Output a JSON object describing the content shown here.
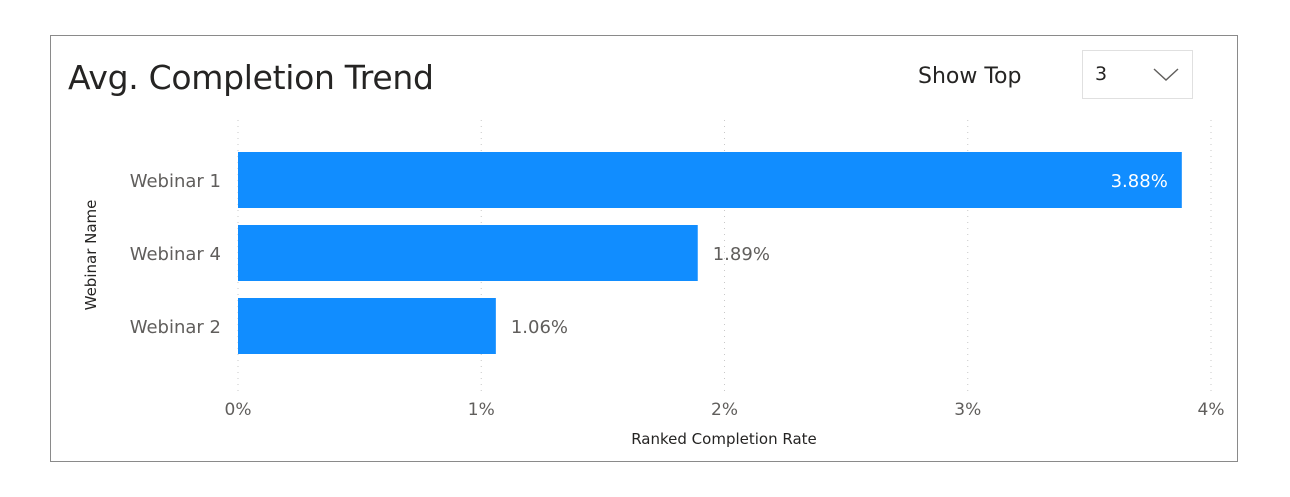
{
  "header": {
    "title": "Avg. Completion Trend",
    "show_top_label": "Show Top",
    "show_top_value": "3",
    "dropdown_icon": "chevron-down-icon"
  },
  "chart_data": {
    "type": "bar",
    "orientation": "horizontal",
    "categories": [
      "Webinar 1",
      "Webinar 4",
      "Webinar 2"
    ],
    "values": [
      3.88,
      1.89,
      1.06
    ],
    "data_labels": [
      "3.88%",
      "1.89%",
      "1.06%"
    ],
    "xlabel": "Ranked Completion Rate",
    "ylabel": "Webinar Name",
    "xlim": [
      0,
      4
    ],
    "xticks": [
      0,
      1,
      2,
      3,
      4
    ],
    "xtick_labels": [
      "0%",
      "1%",
      "2%",
      "3%",
      "4%"
    ],
    "grid": "vertical dotted",
    "bar_color": "#118DFF"
  }
}
